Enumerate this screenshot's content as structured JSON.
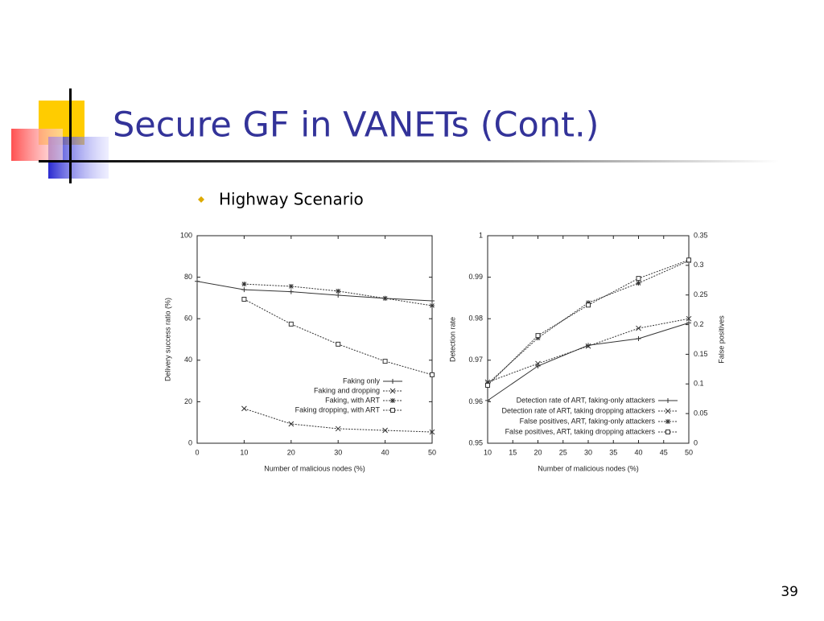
{
  "slide": {
    "title": "Secure GF in VANETs (Cont.)",
    "bullet": "Highway Scenario",
    "page_number": "39"
  },
  "chart_data": [
    {
      "type": "line",
      "x_label": "Number of malicious nodes (%)",
      "y_label": "Delivery success ratio (%)",
      "x": [
        0,
        10,
        20,
        30,
        40,
        50
      ],
      "xlim": [
        0,
        50
      ],
      "xticks": [
        0,
        10,
        20,
        30,
        40,
        50
      ],
      "ylim": [
        0,
        100
      ],
      "yticks": [
        0,
        20,
        40,
        60,
        80,
        100
      ],
      "legend": "lower right",
      "series": [
        {
          "name": "Faking only",
          "color": "#333333",
          "marker": "plus",
          "dashed": false,
          "values": [
            78,
            74,
            73,
            71.3,
            69.8,
            68.6
          ]
        },
        {
          "name": "Faking and dropping",
          "color": "#333333",
          "marker": "cross",
          "dashed": true,
          "values": [
            null,
            16.7,
            9.3,
            7,
            6.2,
            5.4
          ]
        },
        {
          "name": "Faking, with ART",
          "color": "#333333",
          "marker": "star",
          "dashed": true,
          "values": [
            null,
            76.7,
            75.6,
            73.3,
            69.8,
            66.3
          ]
        },
        {
          "name": "Faking  dropping, with ART",
          "color": "#333333",
          "marker": "square",
          "dashed": true,
          "values": [
            null,
            69.4,
            57.4,
            47.7,
            39.5,
            33
          ]
        }
      ]
    },
    {
      "type": "line",
      "x_label": "Number of malicious nodes (%)",
      "y_label": "Detection rate",
      "y2_label": "False positives",
      "x": [
        10,
        20,
        30,
        40,
        50
      ],
      "xlim": [
        10,
        50
      ],
      "xticks": [
        10,
        15,
        20,
        25,
        30,
        35,
        40,
        45,
        50
      ],
      "ylim": [
        0.95,
        1
      ],
      "yticks": [
        0.95,
        0.96,
        0.97,
        0.98,
        0.99,
        1
      ],
      "y2lim": [
        0,
        0.35
      ],
      "y2ticks": [
        0,
        0.05,
        0.1,
        0.15,
        0.2,
        0.25,
        0.3,
        0.35
      ],
      "legend": "lower right",
      "series": [
        {
          "name": "Detection rate of ART, faking-only attackers",
          "color": "#333333",
          "marker": "plus",
          "dashed": false,
          "values": [
            0.9603,
            0.9686,
            0.9736,
            0.9752,
            0.979
          ]
        },
        {
          "name": "Detection rate of ART, taking  dropping attackers",
          "color": "#333333",
          "marker": "cross",
          "dashed": true,
          "values": [
            0.9647,
            0.9692,
            0.9734,
            0.9777,
            0.98
          ]
        },
        {
          "name": "False positives, ART, faking-only attackers",
          "color": "#333333",
          "marker": "star",
          "dashed": true,
          "axis": "y2",
          "values": [
            0.1003,
            0.1775,
            0.237,
            0.27,
            0.3076
          ]
        },
        {
          "name": "False positives, ART, taking  dropping attackers",
          "color": "#333333",
          "marker": "square",
          "dashed": true,
          "axis": "y2",
          "values": [
            0.0976,
            0.1816,
            0.233,
            0.278,
            0.309
          ]
        }
      ]
    }
  ]
}
